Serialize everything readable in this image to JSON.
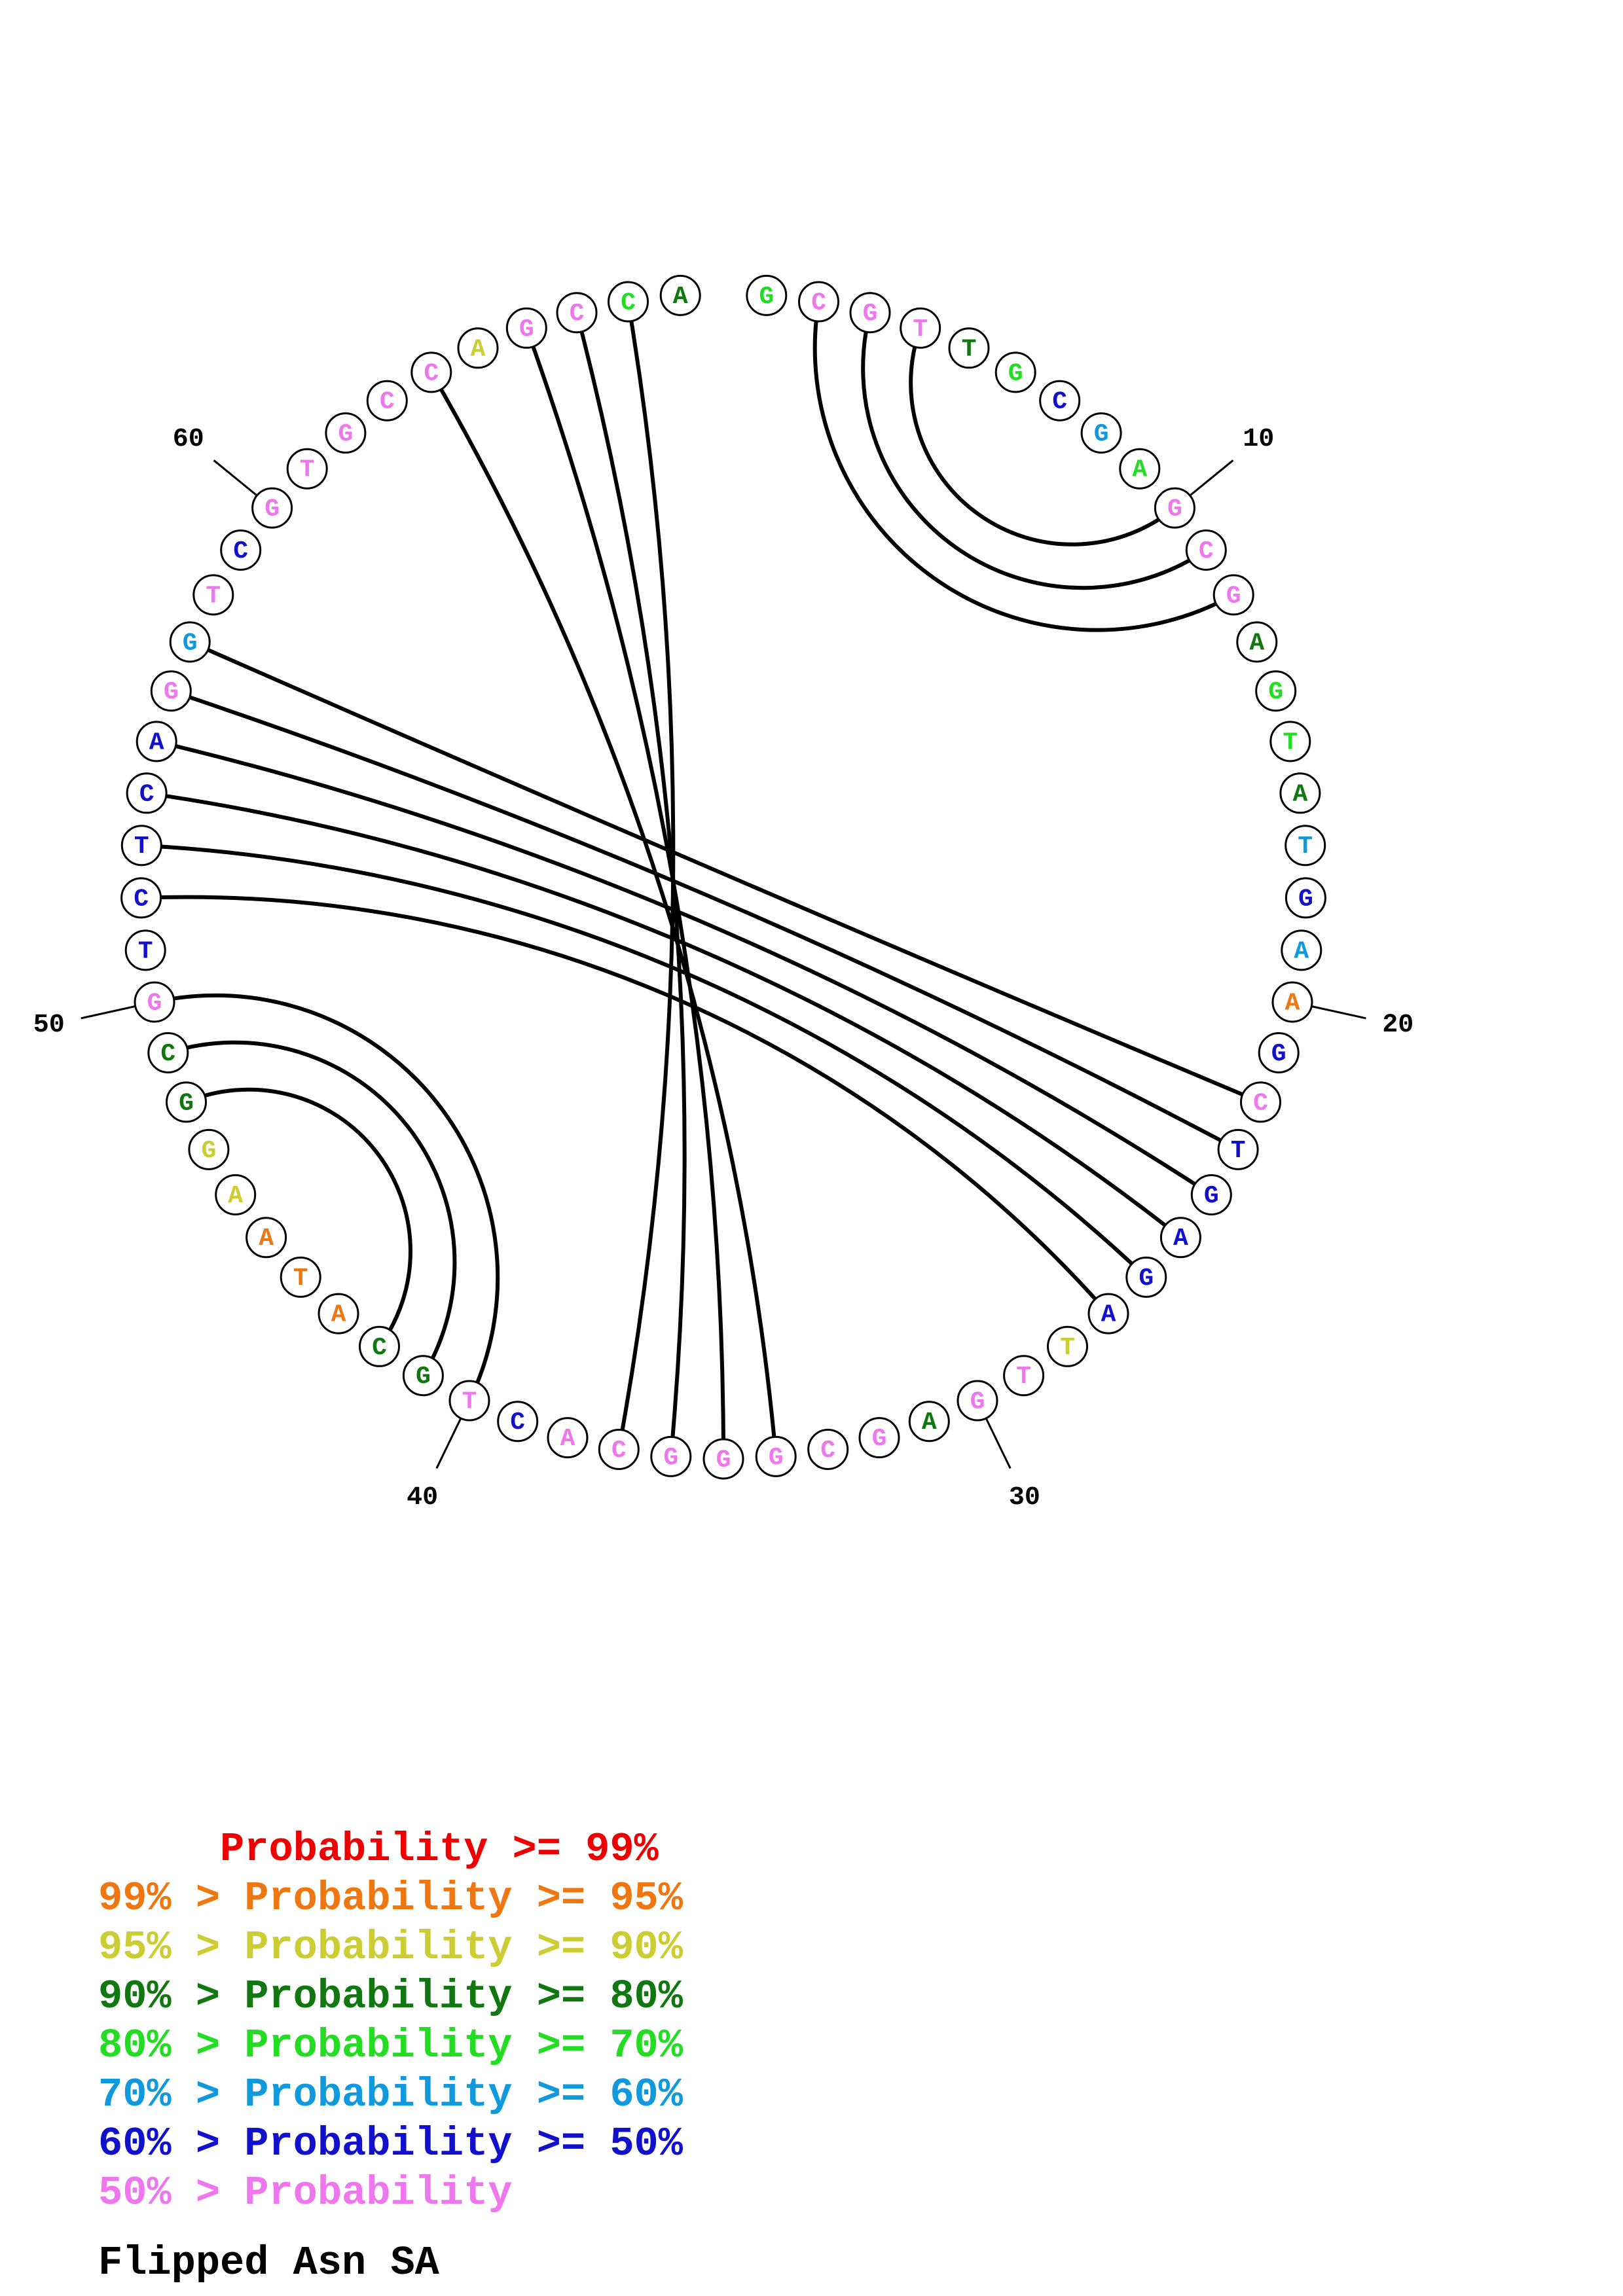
{
  "colors": {
    "p99": "#ee0000",
    "p95": "#ee7711",
    "p90": "#cccc33",
    "p80": "#117711",
    "p70": "#22dd22",
    "p60": "#1199dd",
    "p50": "#1111cc",
    "plow": "#ee77ee"
  },
  "sequence": [
    {
      "n": 1,
      "base": "G",
      "p": "p70"
    },
    {
      "n": 2,
      "base": "C",
      "p": "plow"
    },
    {
      "n": 3,
      "base": "G",
      "p": "plow"
    },
    {
      "n": 4,
      "base": "T",
      "p": "plow"
    },
    {
      "n": 5,
      "base": "T",
      "p": "p80"
    },
    {
      "n": 6,
      "base": "G",
      "p": "p70"
    },
    {
      "n": 7,
      "base": "C",
      "p": "p50"
    },
    {
      "n": 8,
      "base": "G",
      "p": "p60"
    },
    {
      "n": 9,
      "base": "A",
      "p": "p70"
    },
    {
      "n": 10,
      "base": "G",
      "p": "plow"
    },
    {
      "n": 11,
      "base": "C",
      "p": "plow"
    },
    {
      "n": 12,
      "base": "G",
      "p": "plow"
    },
    {
      "n": 13,
      "base": "A",
      "p": "p80"
    },
    {
      "n": 14,
      "base": "G",
      "p": "p70"
    },
    {
      "n": 15,
      "base": "T",
      "p": "p70"
    },
    {
      "n": 16,
      "base": "A",
      "p": "p80"
    },
    {
      "n": 17,
      "base": "T",
      "p": "p60"
    },
    {
      "n": 18,
      "base": "G",
      "p": "p50"
    },
    {
      "n": 19,
      "base": "A",
      "p": "p60"
    },
    {
      "n": 20,
      "base": "A",
      "p": "p95"
    },
    {
      "n": 21,
      "base": "G",
      "p": "p50"
    },
    {
      "n": 22,
      "base": "C",
      "p": "plow"
    },
    {
      "n": 23,
      "base": "T",
      "p": "p50"
    },
    {
      "n": 24,
      "base": "G",
      "p": "p50"
    },
    {
      "n": 25,
      "base": "A",
      "p": "p50"
    },
    {
      "n": 26,
      "base": "G",
      "p": "p50"
    },
    {
      "n": 27,
      "base": "A",
      "p": "p50"
    },
    {
      "n": 28,
      "base": "T",
      "p": "p90"
    },
    {
      "n": 29,
      "base": "T",
      "p": "plow"
    },
    {
      "n": 30,
      "base": "G",
      "p": "plow"
    },
    {
      "n": 31,
      "base": "A",
      "p": "p80"
    },
    {
      "n": 32,
      "base": "G",
      "p": "plow"
    },
    {
      "n": 33,
      "base": "C",
      "p": "plow"
    },
    {
      "n": 34,
      "base": "G",
      "p": "plow"
    },
    {
      "n": 35,
      "base": "G",
      "p": "plow"
    },
    {
      "n": 36,
      "base": "G",
      "p": "plow"
    },
    {
      "n": 37,
      "base": "C",
      "p": "plow"
    },
    {
      "n": 38,
      "base": "A",
      "p": "plow"
    },
    {
      "n": 39,
      "base": "C",
      "p": "p50"
    },
    {
      "n": 40,
      "base": "T",
      "p": "plow"
    },
    {
      "n": 41,
      "base": "G",
      "p": "p80"
    },
    {
      "n": 42,
      "base": "C",
      "p": "p80"
    },
    {
      "n": 43,
      "base": "A",
      "p": "p95"
    },
    {
      "n": 44,
      "base": "T",
      "p": "p95"
    },
    {
      "n": 45,
      "base": "A",
      "p": "p95"
    },
    {
      "n": 46,
      "base": "A",
      "p": "p90"
    },
    {
      "n": 47,
      "base": "G",
      "p": "p90"
    },
    {
      "n": 48,
      "base": "G",
      "p": "p80"
    },
    {
      "n": 49,
      "base": "C",
      "p": "p80"
    },
    {
      "n": 50,
      "base": "G",
      "p": "plow"
    },
    {
      "n": 51,
      "base": "T",
      "p": "p50"
    },
    {
      "n": 52,
      "base": "C",
      "p": "p50"
    },
    {
      "n": 53,
      "base": "T",
      "p": "p50"
    },
    {
      "n": 54,
      "base": "C",
      "p": "p50"
    },
    {
      "n": 55,
      "base": "A",
      "p": "p50"
    },
    {
      "n": 56,
      "base": "G",
      "p": "plow"
    },
    {
      "n": 57,
      "base": "G",
      "p": "p60"
    },
    {
      "n": 58,
      "base": "T",
      "p": "plow"
    },
    {
      "n": 59,
      "base": "C",
      "p": "p50"
    },
    {
      "n": 60,
      "base": "G",
      "p": "plow"
    },
    {
      "n": 61,
      "base": "T",
      "p": "plow"
    },
    {
      "n": 62,
      "base": "G",
      "p": "plow"
    },
    {
      "n": 63,
      "base": "C",
      "p": "plow"
    },
    {
      "n": 64,
      "base": "C",
      "p": "plow"
    },
    {
      "n": 65,
      "base": "A",
      "p": "p90"
    },
    {
      "n": 66,
      "base": "G",
      "p": "plow"
    },
    {
      "n": 67,
      "base": "C",
      "p": "plow"
    },
    {
      "n": 68,
      "base": "C",
      "p": "p70"
    },
    {
      "n": 69,
      "base": "A",
      "p": "p80"
    }
  ],
  "pairs": [
    [
      2,
      12
    ],
    [
      3,
      11
    ],
    [
      4,
      10
    ],
    [
      22,
      57
    ],
    [
      23,
      56
    ],
    [
      24,
      55
    ],
    [
      25,
      54
    ],
    [
      26,
      53
    ],
    [
      27,
      52
    ],
    [
      34,
      64
    ],
    [
      35,
      66
    ],
    [
      36,
      67
    ],
    [
      37,
      68
    ],
    [
      40,
      50
    ],
    [
      41,
      49
    ],
    [
      42,
      48
    ]
  ],
  "tick_labels": [
    {
      "n": 10,
      "label": "10"
    },
    {
      "n": 20,
      "label": "20"
    },
    {
      "n": 30,
      "label": "30"
    },
    {
      "n": 40,
      "label": "40"
    },
    {
      "n": 50,
      "label": "50"
    },
    {
      "n": 60,
      "label": "60"
    }
  ],
  "legend": [
    {
      "text": "     Probability >= 99%",
      "p": "p99"
    },
    {
      "text": "99% > Probability >= 95%",
      "p": "p95"
    },
    {
      "text": "95% > Probability >= 90%",
      "p": "p90"
    },
    {
      "text": "90% > Probability >= 80%",
      "p": "p80"
    },
    {
      "text": "80% > Probability >= 70%",
      "p": "p70"
    },
    {
      "text": "70% > Probability >= 60%",
      "p": "p60"
    },
    {
      "text": "60% > Probability >= 50%",
      "p": "p50"
    },
    {
      "text": "50% > Probability",
      "p": "plow"
    }
  ],
  "caption": "Flipped Asn SA"
}
